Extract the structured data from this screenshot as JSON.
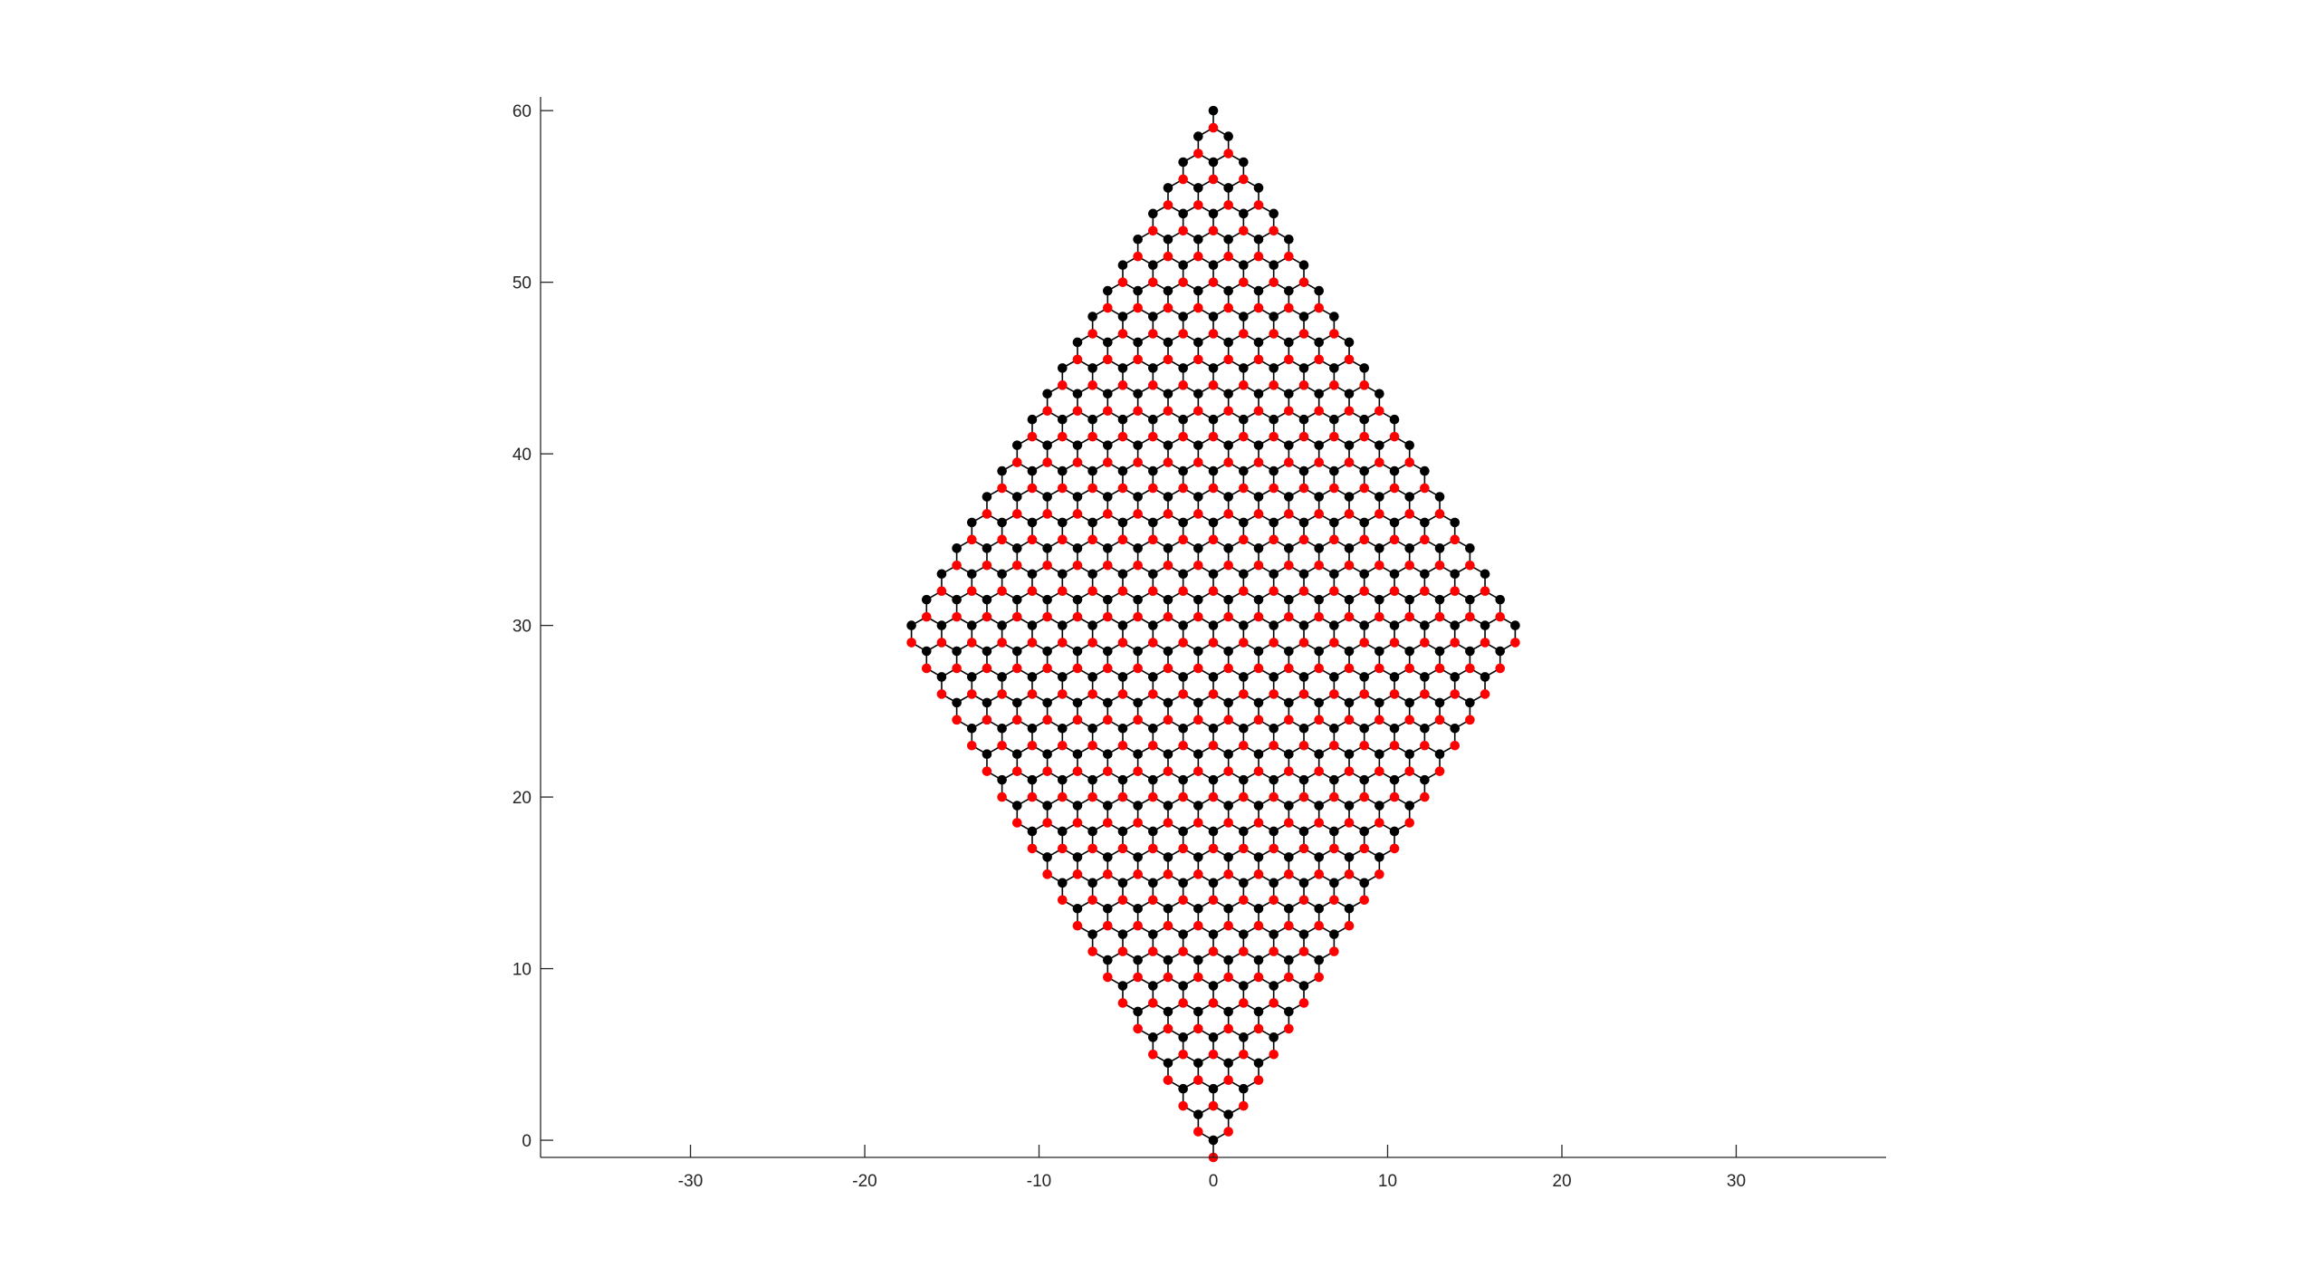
{
  "chart_data": {
    "type": "scatter",
    "title": "",
    "xlabel": "",
    "ylabel": "",
    "xlim": [
      -38.6,
      38.6
    ],
    "ylim": [
      -1,
      60.8
    ],
    "xticks": [
      -30,
      -20,
      -10,
      0,
      10,
      20,
      30
    ],
    "yticks": [
      0,
      10,
      20,
      30,
      40,
      50,
      60
    ],
    "grid": false,
    "legend": "none",
    "lattice": {
      "kind": "honeycomb-rhombus",
      "cells_per_side": 20,
      "bond_length": 1,
      "a1": [
        -0.866,
        1.5
      ],
      "a2": [
        0.866,
        1.5
      ],
      "sublattice_offsets": [
        [
          0,
          0
        ],
        [
          0,
          -1
        ]
      ],
      "bonds_drawn": true
    },
    "series": [
      {
        "values_desc": "sublattice A",
        "color": "#000000",
        "marker": "filled-circle"
      },
      {
        "values_desc": "sublattice B",
        "color": "#ff0000",
        "marker": "filled-circle"
      }
    ]
  }
}
